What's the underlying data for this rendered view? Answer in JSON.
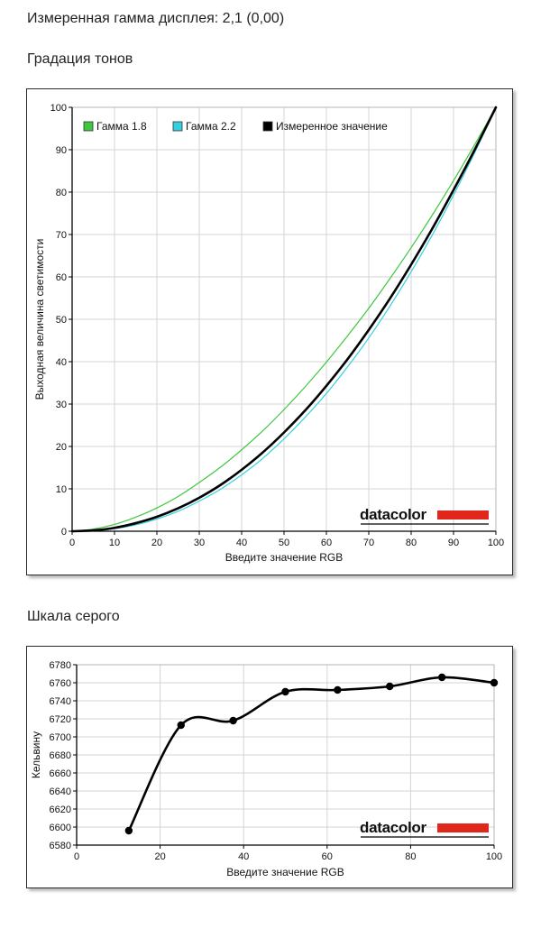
{
  "header": {
    "gamma_text": "Измеренная гамма дисплея: 2,1 (0,00)",
    "tone_section_title": "Градация тонов",
    "gray_section_title": "Шкала серого"
  },
  "colors": {
    "gamma18": "#3ec83e",
    "gamma22": "#35d0e0",
    "measured": "#000000",
    "brand_red": "#e1261c"
  },
  "chart_data": [
    {
      "type": "line",
      "title": "",
      "xlabel": "Введите значение RGB",
      "ylabel": "Выходная величина светимости",
      "xlim": [
        0,
        100
      ],
      "ylim": [
        0,
        100
      ],
      "xticks": [
        0,
        10,
        20,
        30,
        40,
        50,
        60,
        70,
        80,
        90,
        100
      ],
      "yticks": [
        0,
        10,
        20,
        30,
        40,
        50,
        60,
        70,
        80,
        90,
        100
      ],
      "x": [
        0,
        5,
        10,
        15,
        20,
        25,
        30,
        35,
        40,
        45,
        50,
        55,
        60,
        65,
        70,
        75,
        80,
        85,
        90,
        95,
        100
      ],
      "series": [
        {
          "name": "Гамма 1.8",
          "color": "#3ec83e",
          "values": [
            0,
            0.5,
            1.6,
            3.3,
            5.5,
            8.2,
            11.5,
            15.1,
            19.2,
            23.7,
            28.7,
            34.1,
            39.9,
            46.1,
            52.6,
            59.6,
            66.9,
            74.6,
            82.7,
            91.2,
            100
          ]
        },
        {
          "name": "Гамма 2.2",
          "color": "#35d0e0",
          "values": [
            0,
            0.1,
            0.6,
            1.5,
            2.9,
            4.7,
            7.1,
            9.9,
            13.3,
            17.2,
            21.8,
            26.9,
            32.5,
            38.8,
            45.6,
            53.1,
            61.2,
            69.9,
            79.3,
            89.3,
            100
          ]
        },
        {
          "name": "Измеренное значение",
          "color": "#000000",
          "values": [
            0,
            0.2,
            0.8,
            1.9,
            3.4,
            5.4,
            7.9,
            10.9,
            14.5,
            18.6,
            23.3,
            28.5,
            34.3,
            40.6,
            47.5,
            54.9,
            62.9,
            71.4,
            80.5,
            90.0,
            100
          ]
        }
      ],
      "legend": "top-left",
      "grid": true,
      "logo": "datacolor"
    },
    {
      "type": "line",
      "title": "",
      "xlabel": "Введите значение RGB",
      "ylabel": "Кельвину",
      "xlim": [
        0,
        100
      ],
      "ylim": [
        6580,
        6780
      ],
      "xticks": [
        0,
        20,
        40,
        60,
        80,
        100
      ],
      "yticks": [
        6580,
        6600,
        6620,
        6640,
        6660,
        6680,
        6700,
        6720,
        6740,
        6760,
        6780
      ],
      "points": [
        {
          "x": 12.5,
          "y": 6596
        },
        {
          "x": 25,
          "y": 6713
        },
        {
          "x": 37.5,
          "y": 6718
        },
        {
          "x": 50,
          "y": 6750
        },
        {
          "x": 62.5,
          "y": 6752
        },
        {
          "x": 75,
          "y": 6756
        },
        {
          "x": 87.5,
          "y": 6766
        },
        {
          "x": 100,
          "y": 6760
        }
      ],
      "grid": true,
      "logo": "datacolor"
    }
  ]
}
